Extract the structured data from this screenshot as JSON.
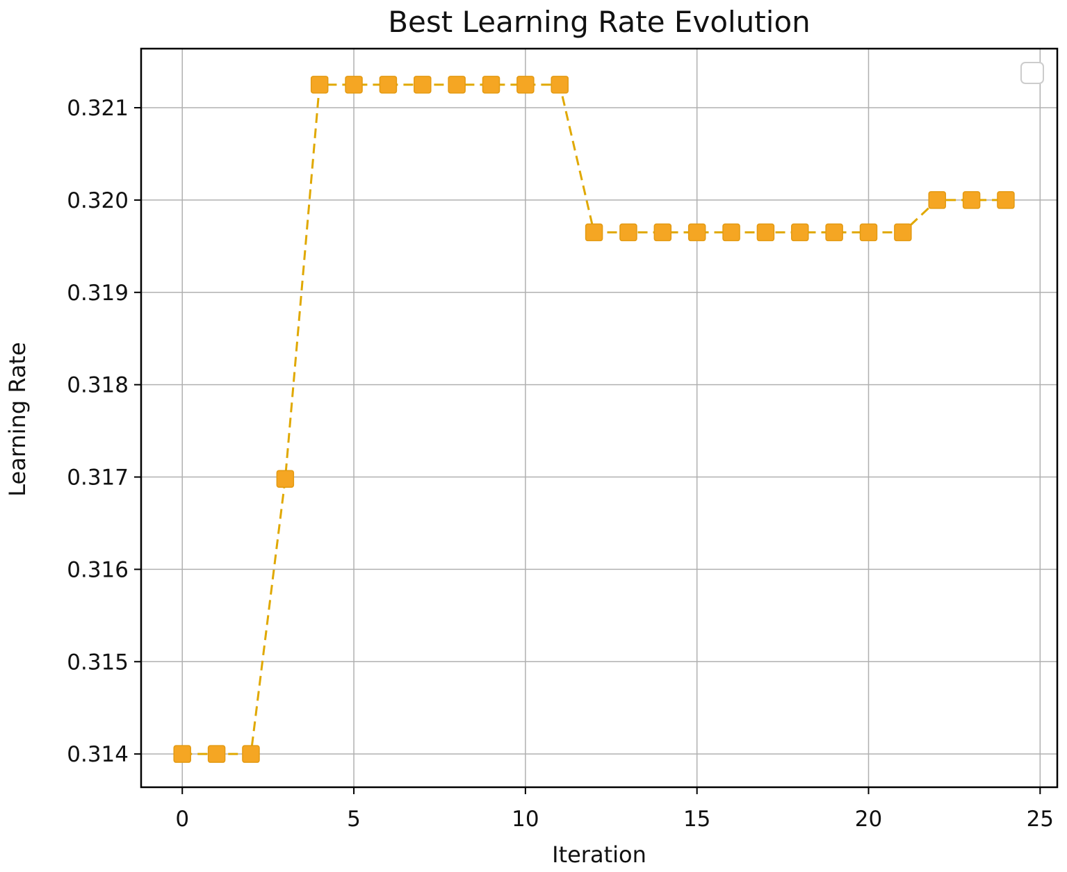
{
  "chart_data": {
    "type": "line",
    "title": "Best Learning Rate Evolution",
    "xlabel": "Iteration",
    "ylabel": "Learning Rate",
    "xlim": [
      -1.2,
      25.5
    ],
    "ylim": [
      0.31364,
      0.32164
    ],
    "x_ticks": [
      0,
      5,
      10,
      15,
      20,
      25
    ],
    "x_tick_labels": [
      "0",
      "5",
      "10",
      "15",
      "20",
      "25"
    ],
    "y_ticks": [
      0.314,
      0.315,
      0.316,
      0.317,
      0.318,
      0.319,
      0.32,
      0.321
    ],
    "y_tick_labels": [
      "0.314",
      "0.315",
      "0.316",
      "0.317",
      "0.318",
      "0.319",
      "0.320",
      "0.321"
    ],
    "grid": true,
    "legend": "empty box, upper right",
    "line_style": "dashed",
    "marker": "square",
    "colors": {
      "marker": "#F5A623",
      "line": "#E0A800",
      "grid": "#B0B0B0",
      "axes": "#000000"
    },
    "series": [
      {
        "x": [
          0,
          1,
          2,
          3,
          4,
          5,
          6,
          7,
          8,
          9,
          10,
          11,
          12,
          13,
          14,
          15,
          16,
          17,
          18,
          19,
          20,
          21,
          22,
          23,
          24
        ],
        "y": [
          0.314,
          0.314,
          0.314,
          0.31698,
          0.32125,
          0.32125,
          0.32125,
          0.32125,
          0.32125,
          0.32125,
          0.32125,
          0.32125,
          0.31965,
          0.31965,
          0.31965,
          0.31965,
          0.31965,
          0.31965,
          0.31965,
          0.31965,
          0.31965,
          0.31965,
          0.32,
          0.32,
          0.32
        ]
      }
    ]
  }
}
